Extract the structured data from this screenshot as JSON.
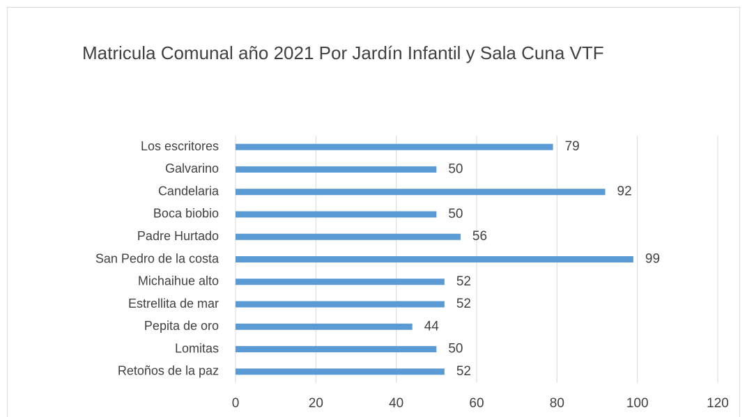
{
  "chart_data": {
    "type": "hbar",
    "title": "Matricula Comunal año 2021 Por Jardín Infantil y Sala Cuna VTF",
    "categories": [
      "Los escritores",
      "Galvarino",
      "Candelaria",
      "Boca biobio",
      "Padre Hurtado",
      "San Pedro de la costa",
      "Michaihue alto",
      "Estrellita de mar",
      "Pepita de oro",
      "Lomitas",
      "Retoños de la paz"
    ],
    "values": [
      79,
      50,
      92,
      50,
      56,
      99,
      52,
      52,
      44,
      50,
      52
    ],
    "color": "#5b9bd5",
    "xlim": [
      0,
      120
    ],
    "xticks": [
      0,
      20,
      40,
      60,
      80,
      100,
      120
    ],
    "grid": true
  }
}
